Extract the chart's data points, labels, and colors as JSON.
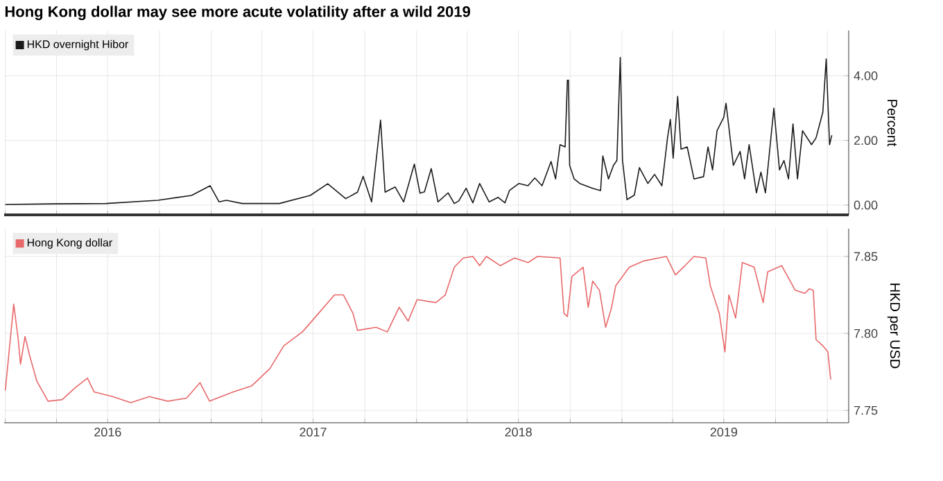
{
  "chart_data": [
    {
      "type": "line",
      "title": "Hong Kong dollar may see more acute volatility after a wild 2019",
      "ylabel": "Percent",
      "legend": "top left",
      "grid": true,
      "tick_labels": "y",
      "xlim": [
        "2015-12-30",
        "2020-02-08"
      ],
      "ylim": [
        -0.3,
        5.4
      ],
      "xticks": [
        {
          "value": "2016-01-01",
          "label": null
        },
        {
          "value": "2016-04-01",
          "label": null
        },
        {
          "value": "2016-07-01",
          "label": null
        },
        {
          "value": "2016-10-01",
          "label": null
        },
        {
          "value": "2017-01-01",
          "label": null
        },
        {
          "value": "2017-04-01",
          "label": null
        },
        {
          "value": "2017-07-01",
          "label": null
        },
        {
          "value": "2017-10-01",
          "label": null
        },
        {
          "value": "2018-01-01",
          "label": null
        },
        {
          "value": "2018-04-01",
          "label": null
        },
        {
          "value": "2018-07-01",
          "label": null
        },
        {
          "value": "2018-10-01",
          "label": null
        },
        {
          "value": "2019-01-01",
          "label": null
        },
        {
          "value": "2019-04-01",
          "label": null
        },
        {
          "value": "2019-07-01",
          "label": null
        },
        {
          "value": "2019-10-01",
          "label": null
        },
        {
          "value": "2020-01-01",
          "label": null
        }
      ],
      "yticks": [
        {
          "value": 0,
          "label": "0.00"
        },
        {
          "value": 2,
          "label": "2.00"
        },
        {
          "value": 4,
          "label": "4.00"
        }
      ],
      "series": [
        {
          "name": "HKD overnight Hibor",
          "color": "#1a1a1a",
          "x": [
            "2016-01-01",
            "2016-03-26",
            "2016-06-28",
            "2016-09-28",
            "2016-11-27",
            "2016-12-30",
            "2017-01-15",
            "2017-01-28",
            "2017-02-25",
            "2017-05-02",
            "2017-06-26",
            "2017-07-27",
            "2017-08-28",
            "2017-09-18",
            "2017-09-28",
            "2017-10-13",
            "2017-10-29",
            "2017-11-06",
            "2017-11-24",
            "2017-12-09",
            "2017-12-28",
            "2018-01-07",
            "2018-01-15",
            "2018-01-27",
            "2018-02-08",
            "2018-02-26",
            "2018-03-09",
            "2018-03-17",
            "2018-03-30",
            "2018-04-11",
            "2018-04-23",
            "2018-05-10",
            "2018-05-26",
            "2018-06-07",
            "2018-06-15",
            "2018-07-02",
            "2018-07-18",
            "2018-07-30",
            "2018-08-12",
            "2018-08-28",
            "2018-09-05",
            "2018-09-13",
            "2018-09-22",
            "2018-09-26",
            "2018-09-28",
            "2018-09-30",
            "2018-10-08",
            "2018-10-18",
            "2018-11-10",
            "2018-11-24",
            "2018-11-28",
            "2018-12-08",
            "2018-12-17",
            "2018-12-23",
            "2018-12-29",
            "2019-01-02",
            "2019-01-10",
            "2019-01-23",
            "2019-02-01",
            "2019-02-16",
            "2019-02-28",
            "2019-03-13",
            "2019-03-23",
            "2019-03-28",
            "2019-04-02",
            "2019-04-10",
            "2019-04-16",
            "2019-04-27",
            "2019-05-09",
            "2019-05-26",
            "2019-06-03",
            "2019-06-11",
            "2019-06-19",
            "2019-07-01",
            "2019-07-05",
            "2019-07-18",
            "2019-07-30",
            "2019-08-07",
            "2019-08-15",
            "2019-08-28",
            "2019-09-05",
            "2019-09-13",
            "2019-09-28",
            "2019-10-08",
            "2019-10-16",
            "2019-10-24",
            "2019-11-01",
            "2019-11-09",
            "2019-11-18",
            "2019-12-04",
            "2019-12-12",
            "2019-12-24",
            "2019-12-30",
            "2020-01-05",
            "2020-01-09"
          ],
          "values": [
            0.02,
            0.04,
            0.05,
            0.15,
            0.3,
            0.6,
            0.1,
            0.15,
            0.05,
            0.05,
            0.3,
            0.66,
            0.2,
            0.4,
            0.89,
            0.1,
            2.63,
            0.4,
            0.56,
            0.1,
            1.27,
            0.37,
            0.41,
            1.13,
            0.1,
            0.38,
            0.05,
            0.13,
            0.52,
            0.07,
            0.67,
            0.1,
            0.24,
            0.07,
            0.45,
            0.67,
            0.6,
            0.84,
            0.6,
            1.35,
            0.81,
            1.87,
            1.8,
            3.86,
            3.86,
            1.23,
            0.81,
            0.67,
            0.52,
            0.45,
            1.52,
            0.81,
            1.23,
            1.38,
            4.57,
            1.38,
            0.17,
            0.31,
            1.16,
            0.67,
            0.95,
            0.6,
            2.08,
            2.65,
            1.45,
            3.36,
            1.73,
            1.8,
            0.81,
            0.88,
            1.8,
            1.09,
            2.3,
            2.72,
            3.15,
            1.23,
            1.66,
            0.81,
            1.87,
            0.38,
            1.02,
            0.38,
            3.0,
            1.09,
            1.38,
            0.81,
            2.51,
            0.81,
            2.3,
            1.87,
            2.08,
            2.87,
            4.52,
            1.87,
            2.16
          ]
        }
      ]
    },
    {
      "type": "line",
      "ylabel": "HKD per USD",
      "legend": "top left",
      "grid": true,
      "xlim": [
        "2015-12-30",
        "2020-02-08"
      ],
      "ylim": [
        7.742,
        7.868
      ],
      "xticks": [
        {
          "value": "2016-01-01",
          "label": null
        },
        {
          "value": "2016-04-01",
          "label": null
        },
        {
          "value": "2016-07-01",
          "label": "2016"
        },
        {
          "value": "2016-10-01",
          "label": null
        },
        {
          "value": "2017-01-01",
          "label": null
        },
        {
          "value": "2017-04-01",
          "label": null
        },
        {
          "value": "2017-07-01",
          "label": "2017"
        },
        {
          "value": "2017-10-01",
          "label": null
        },
        {
          "value": "2018-01-01",
          "label": null
        },
        {
          "value": "2018-04-01",
          "label": null
        },
        {
          "value": "2018-07-01",
          "label": "2018"
        },
        {
          "value": "2018-10-01",
          "label": null
        },
        {
          "value": "2019-01-01",
          "label": null
        },
        {
          "value": "2019-04-01",
          "label": null
        },
        {
          "value": "2019-07-01",
          "label": "2019"
        },
        {
          "value": "2019-10-01",
          "label": null
        },
        {
          "value": "2020-01-01",
          "label": null
        }
      ],
      "yticks": [
        {
          "value": 7.75,
          "label": "7.75"
        },
        {
          "value": 7.8,
          "label": "7.80"
        },
        {
          "value": 7.85,
          "label": "7.85"
        }
      ],
      "series": [
        {
          "name": "Hong Kong dollar",
          "color": "#e8686a",
          "x": [
            "2016-01-01",
            "2016-01-16",
            "2016-01-24",
            "2016-01-28",
            "2016-02-05",
            "2016-02-13",
            "2016-02-26",
            "2016-03-17",
            "2016-04-11",
            "2016-05-05",
            "2016-05-26",
            "2016-06-07",
            "2016-07-10",
            "2016-08-11",
            "2016-09-13",
            "2016-10-16",
            "2016-11-18",
            "2016-12-12",
            "2016-12-29",
            "2017-02-09",
            "2017-03-14",
            "2017-04-15",
            "2017-05-10",
            "2017-06-12",
            "2017-07-06",
            "2017-08-08",
            "2017-08-24",
            "2017-09-10",
            "2017-09-18",
            "2017-10-21",
            "2017-11-10",
            "2017-12-01",
            "2017-12-17",
            "2018-01-02",
            "2018-02-04",
            "2018-02-21",
            "2018-03-09",
            "2018-03-25",
            "2018-04-11",
            "2018-04-23",
            "2018-05-05",
            "2018-05-30",
            "2018-06-24",
            "2018-07-18",
            "2018-08-04",
            "2018-09-13",
            "2018-09-20",
            "2018-09-26",
            "2018-10-04",
            "2018-10-24",
            "2018-11-02",
            "2018-11-10",
            "2018-11-22",
            "2018-12-03",
            "2018-12-13",
            "2018-12-21",
            "2019-01-14",
            "2019-02-08",
            "2019-03-21",
            "2019-04-06",
            "2019-04-23",
            "2019-05-09",
            "2019-05-30",
            "2019-06-07",
            "2019-06-23",
            "2019-07-03",
            "2019-07-10",
            "2019-07-22",
            "2019-08-03",
            "2019-08-24",
            "2019-09-09",
            "2019-09-17",
            "2019-10-12",
            "2019-11-05",
            "2019-11-22",
            "2019-11-30",
            "2019-12-07",
            "2019-12-12",
            "2019-12-24",
            "2020-01-02",
            "2020-01-07"
          ],
          "values": [
            7.763,
            7.819,
            7.796,
            7.78,
            7.798,
            7.786,
            7.769,
            7.756,
            7.757,
            7.765,
            7.771,
            7.762,
            7.759,
            7.755,
            7.759,
            7.756,
            7.758,
            7.768,
            7.756,
            7.762,
            7.766,
            7.777,
            7.792,
            7.801,
            7.811,
            7.825,
            7.825,
            7.813,
            7.802,
            7.804,
            7.801,
            7.817,
            7.808,
            7.822,
            7.82,
            7.825,
            7.843,
            7.849,
            7.85,
            7.844,
            7.85,
            7.844,
            7.849,
            7.846,
            7.85,
            7.849,
            7.813,
            7.811,
            7.837,
            7.843,
            7.817,
            7.834,
            7.828,
            7.804,
            7.816,
            7.831,
            7.843,
            7.847,
            7.85,
            7.838,
            7.844,
            7.85,
            7.849,
            7.831,
            7.813,
            7.788,
            7.825,
            7.81,
            7.846,
            7.843,
            7.82,
            7.84,
            7.844,
            7.828,
            7.826,
            7.829,
            7.828,
            7.796,
            7.792,
            7.788,
            7.77
          ]
        }
      ]
    }
  ]
}
